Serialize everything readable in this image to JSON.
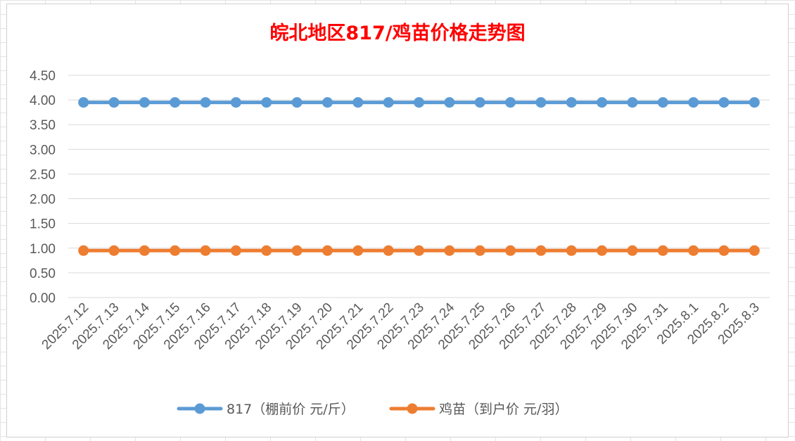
{
  "chart_data": {
    "type": "line",
    "title": "皖北地区817/鸡苗价格走势图",
    "categories": [
      "2025.7.12",
      "2025.7.13",
      "2025.7.14",
      "2025.7.15",
      "2025.7.16",
      "2025.7.17",
      "2025.7.18",
      "2025.7.19",
      "2025.7.20",
      "2025.7.21",
      "2025.7.22",
      "2025.7.23",
      "2025.7.24",
      "2025.7.25",
      "2025.7.26",
      "2025.7.27",
      "2025.7.28",
      "2025.7.29",
      "2025.7.30",
      "2025.7.31",
      "2025.8.1",
      "2025.8.2",
      "2025.8.3"
    ],
    "y_ticks": [
      "0.00",
      "0.50",
      "1.00",
      "1.50",
      "2.00",
      "2.50",
      "3.00",
      "3.50",
      "4.00",
      "4.50"
    ],
    "ylim": [
      0,
      4.5
    ],
    "grid": true,
    "legend_position": "bottom",
    "series": [
      {
        "name": "817（棚前价 元/斤）",
        "color": "#5b9bd5",
        "values": [
          3.95,
          3.95,
          3.95,
          3.95,
          3.95,
          3.95,
          3.95,
          3.95,
          3.95,
          3.95,
          3.95,
          3.95,
          3.95,
          3.95,
          3.95,
          3.95,
          3.95,
          3.95,
          3.95,
          3.95,
          3.95,
          3.95,
          3.95
        ]
      },
      {
        "name": "鸡苗（到户价 元/羽）",
        "color": "#ed7d31",
        "values": [
          0.95,
          0.95,
          0.95,
          0.95,
          0.95,
          0.95,
          0.95,
          0.95,
          0.95,
          0.95,
          0.95,
          0.95,
          0.95,
          0.95,
          0.95,
          0.95,
          0.95,
          0.95,
          0.95,
          0.95,
          0.95,
          0.95,
          0.95
        ]
      }
    ]
  }
}
